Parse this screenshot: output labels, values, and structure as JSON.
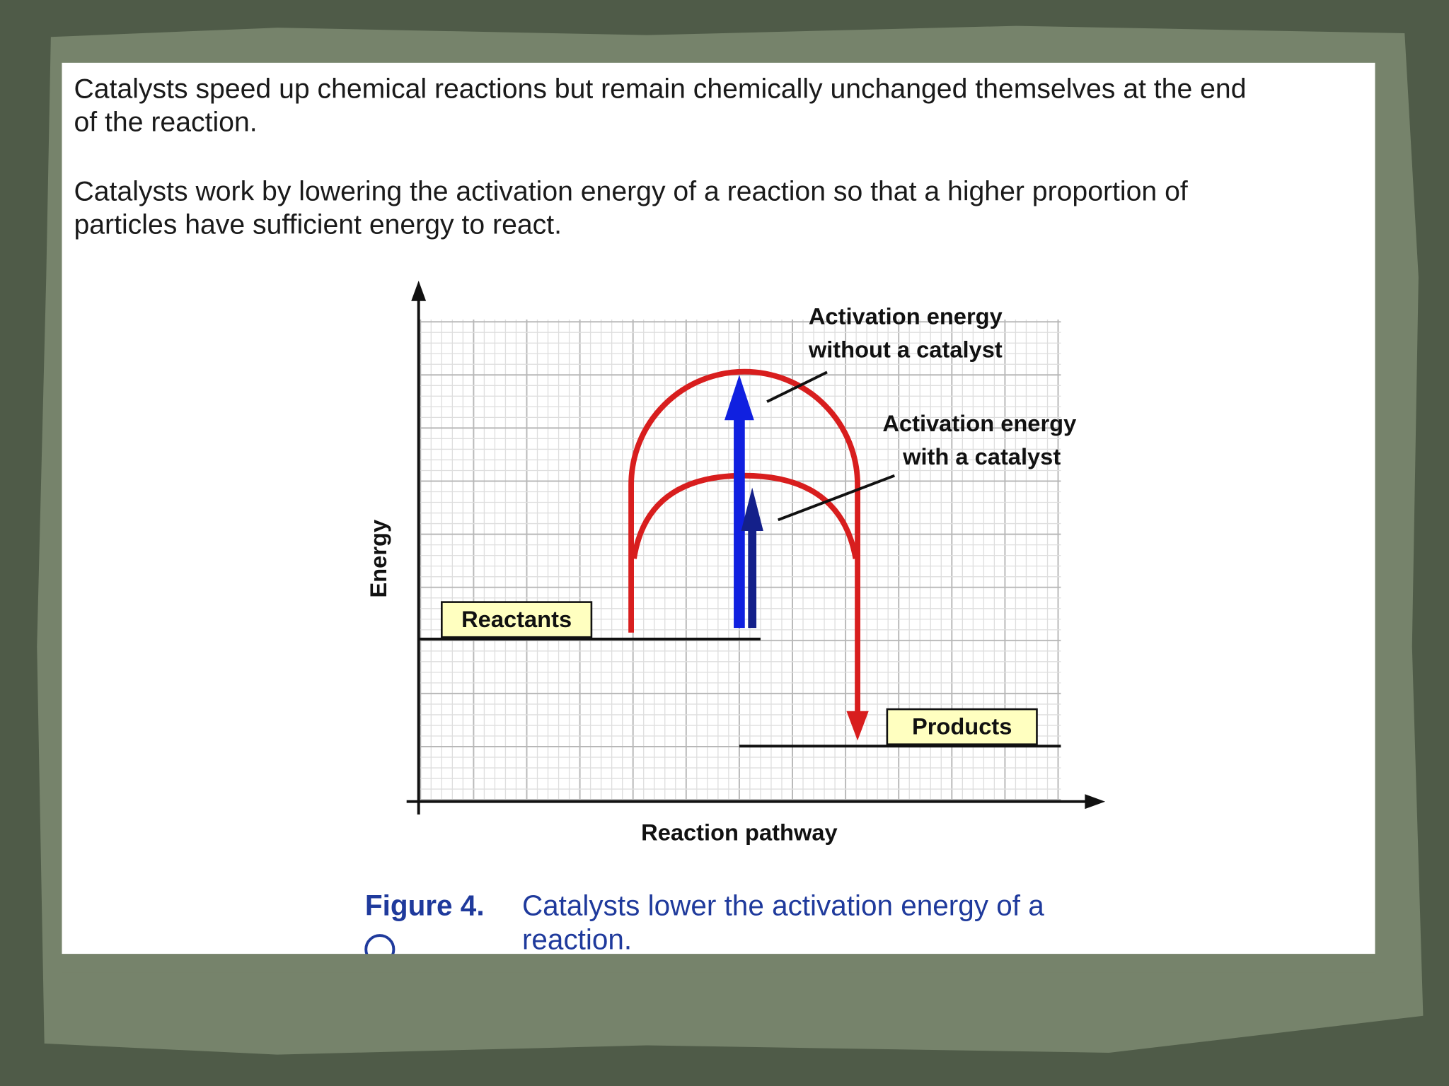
{
  "paragraphs": [
    [
      "Catalysts speed up chemical reactions but remain chemically unchanged themselves at the end",
      "of the reaction."
    ],
    [
      "Catalysts work by lowering the activation energy of a reaction so that a higher proportion of",
      "particles have sufficient energy to react."
    ]
  ],
  "diagram": {
    "y_axis_label": "Energy",
    "x_axis_label": "Reaction pathway",
    "reactants": "Reactants",
    "products": "Products",
    "without_catalyst": [
      "Activation energy",
      "without a catalyst"
    ],
    "with_catalyst": [
      "Activation energy",
      "with a catalyst"
    ]
  },
  "caption": {
    "label": "Figure 4.",
    "text": [
      "Catalysts lower the activation energy of a",
      "reaction."
    ]
  }
}
